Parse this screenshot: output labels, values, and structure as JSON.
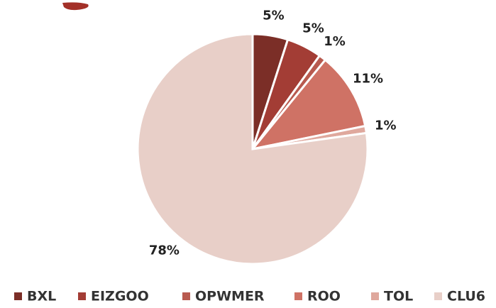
{
  "chart_data": {
    "type": "pie",
    "categories": [
      "BXL",
      "EIZGOO",
      "OPWMER",
      "ROO",
      "TOL",
      "CLU6"
    ],
    "values": [
      5,
      5,
      1,
      11,
      1,
      78
    ],
    "colors": [
      "#7b2e27",
      "#a33d35",
      "#b85a4f",
      "#cf7265",
      "#dfa89d",
      "#e8cfc8"
    ],
    "value_labels": [
      "5%",
      "5%",
      "1%",
      "11%",
      "1%",
      "78%"
    ],
    "legend": "bottom"
  }
}
